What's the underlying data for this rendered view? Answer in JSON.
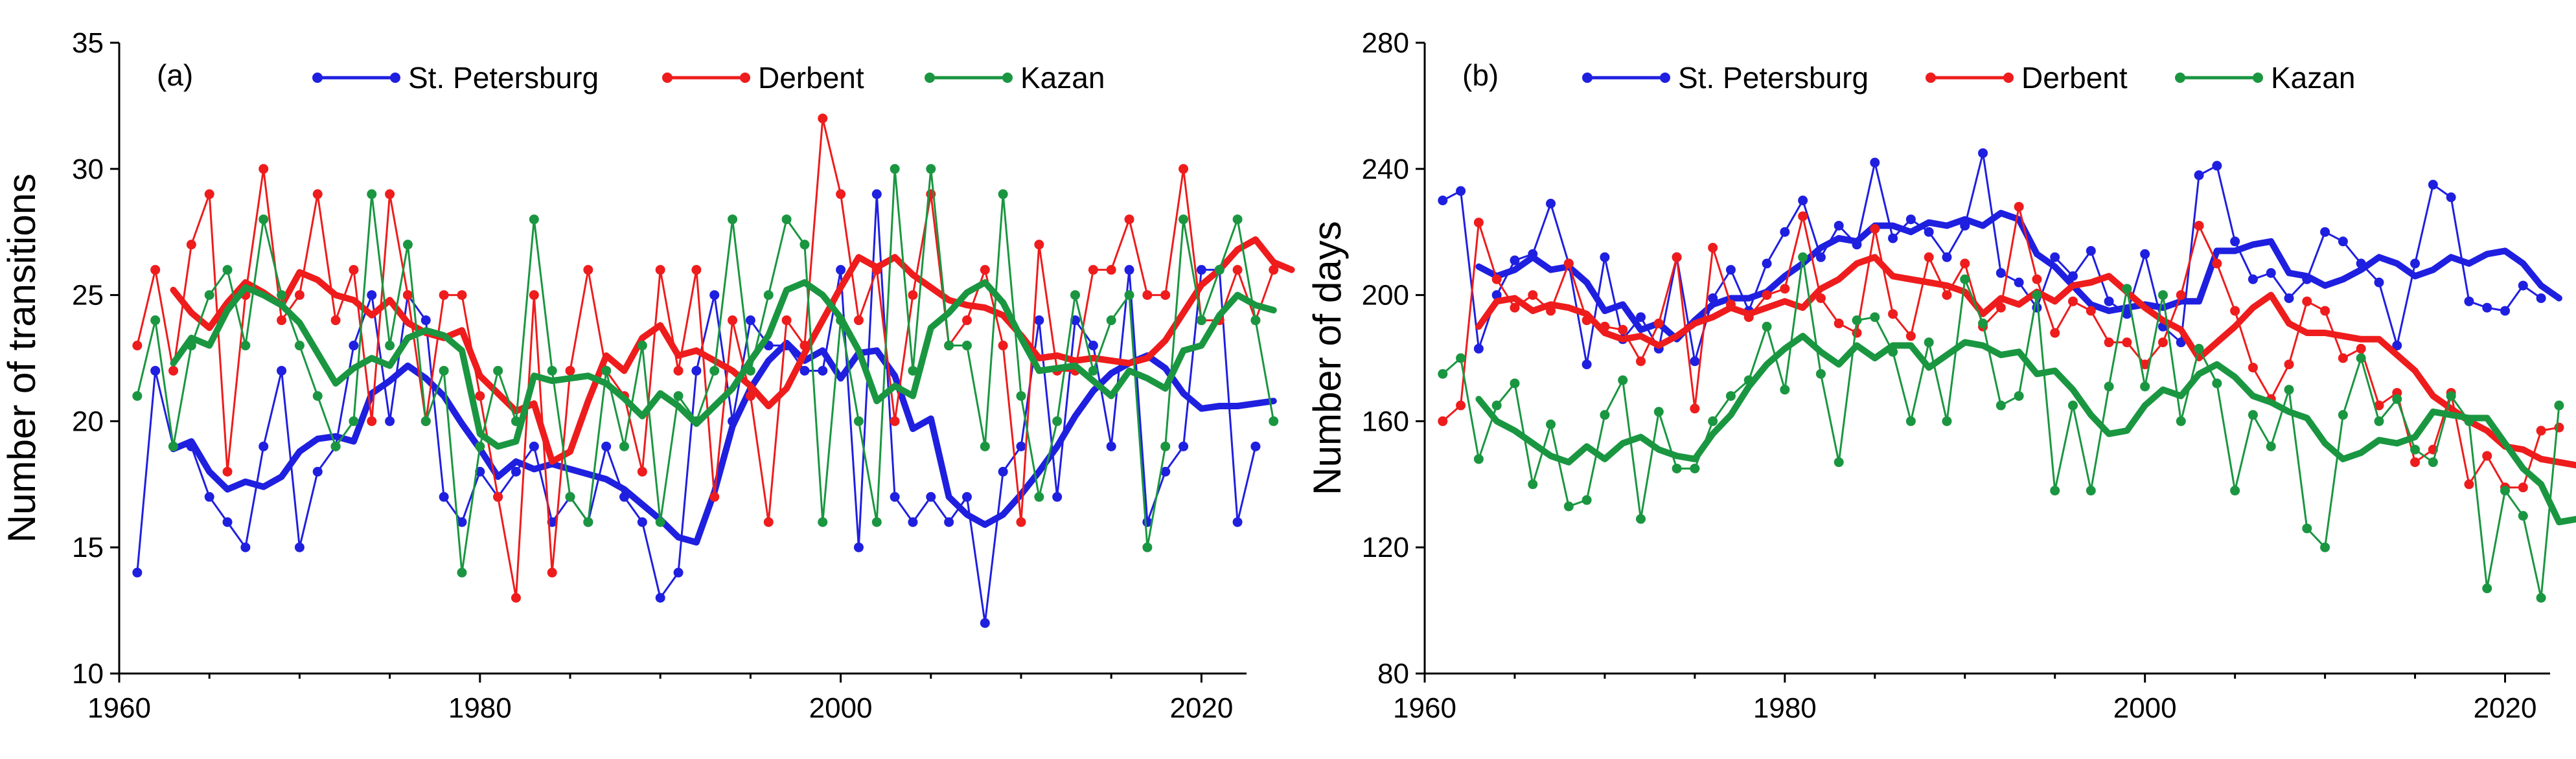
{
  "chart_data": [
    {
      "type": "line",
      "panel_label": "(a)",
      "ylabel": "Number of transitions",
      "xlabel": "",
      "xlim": [
        1960,
        2022.5
      ],
      "ylim": [
        10,
        35
      ],
      "xticks": [
        1960,
        1980,
        2000,
        2020
      ],
      "xtick_labels": [
        "1960",
        "1980",
        "2000",
        "2020"
      ],
      "yticks": [
        10,
        15,
        20,
        25,
        30,
        35
      ],
      "ytick_labels": [
        "10",
        "15",
        "20",
        "25",
        "30",
        "35"
      ],
      "legend": [
        "St. Petersburg",
        "Derbent",
        "Kazan"
      ],
      "series": [
        {
          "name": "St. Petersburg",
          "color": "#1f1fe0",
          "x_start": 1961,
          "values": [
            14,
            22,
            19,
            19,
            17,
            16,
            15,
            19,
            22,
            15,
            18,
            19,
            23,
            25,
            20,
            25,
            24,
            17,
            16,
            18,
            17,
            18,
            19,
            16,
            17,
            16,
            19,
            17,
            16,
            13,
            14,
            22,
            25,
            20,
            24,
            23,
            23,
            22,
            22,
            26,
            15,
            29,
            17,
            16,
            17,
            16,
            17,
            12,
            18,
            19,
            24,
            17,
            24,
            23,
            19,
            26,
            16,
            18,
            19,
            26,
            26,
            16,
            19
          ],
          "smooth_x_start": 1963,
          "smooth": [
            18.9,
            19.2,
            18.0,
            17.3,
            17.6,
            17.4,
            17.8,
            18.8,
            19.3,
            19.4,
            19.2,
            21.1,
            21.6,
            22.2,
            21.7,
            21.0,
            19.9,
            18.9,
            17.8,
            18.4,
            18.1,
            18.3,
            18.1,
            17.9,
            17.7,
            17.3,
            16.7,
            16.1,
            15.4,
            15.2,
            17.2,
            19.8,
            21.3,
            22.4,
            23.1,
            22.4,
            22.8,
            21.7,
            22.7,
            22.8,
            21.8,
            19.7,
            20.1,
            17.0,
            16.3,
            15.9,
            16.3,
            17.1,
            18.0,
            19.0,
            20.2,
            21.2,
            21.9,
            22.3,
            22.6,
            22.1,
            21.1,
            20.5,
            20.6,
            20.6,
            20.7,
            20.8
          ]
        },
        {
          "name": "Derbent",
          "color": "#ee1c1c",
          "x_start": 1961,
          "values": [
            23,
            26,
            22,
            27,
            29,
            18,
            25,
            30,
            24,
            25,
            29,
            24,
            26,
            20,
            29,
            25,
            20,
            25,
            25,
            21,
            17,
            13,
            25,
            14,
            22,
            26,
            22,
            21,
            18,
            26,
            22,
            26,
            17,
            24,
            21,
            16,
            24,
            23,
            32,
            29,
            24,
            26,
            20,
            25,
            29,
            23,
            24,
            26,
            23,
            16,
            27,
            22,
            22,
            26,
            26,
            28,
            25,
            25,
            30,
            24,
            24,
            26,
            24,
            26
          ],
          "smooth_x_start": 1963,
          "smooth": [
            25.2,
            24.3,
            23.7,
            24.7,
            25.5,
            25.1,
            24.6,
            25.9,
            25.6,
            25.0,
            24.8,
            24.2,
            24.8,
            23.9,
            23.5,
            23.3,
            23.6,
            21.8,
            21.1,
            20.4,
            20.7,
            18.4,
            18.8,
            20.8,
            22.6,
            22.0,
            23.3,
            23.8,
            22.6,
            22.8,
            22.4,
            22.0,
            21.4,
            20.6,
            21.3,
            22.7,
            24.0,
            25.3,
            26.5,
            26.1,
            26.5,
            25.8,
            25.3,
            24.8,
            24.6,
            24.5,
            24.2,
            23.4,
            22.5,
            22.6,
            22.4,
            22.5,
            22.4,
            22.3,
            22.5,
            23.2,
            24.3,
            25.4,
            26.0,
            26.8,
            27.2,
            26.3,
            26.0
          ]
        },
        {
          "name": "Kazan",
          "color": "#1a9641",
          "x_start": 1961,
          "values": [
            21,
            24,
            19,
            23,
            25,
            26,
            23,
            28,
            25,
            23,
            21,
            19,
            20,
            29,
            23,
            27,
            20,
            22,
            14,
            19,
            22,
            20,
            28,
            22,
            17,
            16,
            22,
            19,
            23,
            16,
            21,
            20,
            22,
            28,
            22,
            25,
            28,
            27,
            16,
            24,
            20,
            16,
            30,
            22,
            30,
            23,
            23,
            19,
            29,
            21,
            17,
            20,
            25,
            22,
            24,
            25,
            15,
            19,
            28,
            24,
            26,
            28,
            24,
            20
          ],
          "smooth_x_start": 1963,
          "smooth": [
            22.3,
            23.3,
            23.0,
            24.4,
            25.3,
            25.0,
            24.6,
            23.9,
            22.7,
            21.5,
            22.1,
            22.5,
            22.2,
            23.3,
            23.6,
            23.4,
            22.8,
            19.5,
            19.0,
            19.2,
            21.8,
            21.6,
            21.7,
            21.8,
            21.5,
            20.9,
            20.2,
            21.1,
            20.6,
            19.9,
            20.6,
            21.3,
            22.4,
            23.4,
            25.2,
            25.5,
            25.0,
            24.1,
            22.8,
            20.8,
            21.4,
            21.0,
            23.7,
            24.3,
            25.1,
            25.5,
            24.7,
            23.3,
            22.0,
            22.1,
            22.2,
            21.6,
            21.0,
            22.0,
            21.7,
            21.3,
            22.8,
            23.0,
            24.2,
            25.0,
            24.6,
            24.4
          ]
        }
      ]
    },
    {
      "type": "line",
      "panel_label": "(b)",
      "ylabel": "Number of days",
      "xlabel": "",
      "xlim": [
        1960,
        2022.5
      ],
      "ylim": [
        80,
        280
      ],
      "xticks": [
        1960,
        1980,
        2000,
        2020
      ],
      "xtick_labels": [
        "1960",
        "1980",
        "2000",
        "2020"
      ],
      "yticks": [
        80,
        120,
        160,
        200,
        240,
        280
      ],
      "ytick_labels": [
        "80",
        "120",
        "160",
        "200",
        "240",
        "280"
      ],
      "legend": [
        "St. Petersburg",
        "Derbent",
        "Kazan"
      ],
      "series": [
        {
          "name": "St. Petersburg",
          "color": "#1f1fe0",
          "x_start": 1961,
          "values": [
            230,
            233,
            183,
            200,
            211,
            213,
            229,
            210,
            178,
            212,
            186,
            193,
            183,
            212,
            179,
            199,
            208,
            195,
            210,
            220,
            230,
            212,
            222,
            216,
            242,
            218,
            224,
            220,
            212,
            222,
            245,
            207,
            204,
            196,
            212,
            206,
            214,
            198,
            194,
            213,
            190,
            185,
            238,
            241,
            217,
            205,
            207,
            199,
            205,
            220,
            217,
            210,
            204,
            184,
            210,
            235,
            231,
            198,
            196,
            195,
            203,
            199
          ],
          "smooth_x_start": 1963,
          "smooth": [
            209,
            206,
            208,
            212,
            208,
            209,
            204,
            195,
            197,
            189,
            191,
            186,
            192,
            197,
            199,
            199,
            201,
            206,
            210,
            215,
            218,
            217,
            222,
            222,
            220,
            223,
            222,
            224,
            222,
            226,
            224,
            213,
            209,
            203,
            197,
            195,
            196,
            197,
            196,
            198,
            198,
            214,
            214,
            216,
            217,
            207,
            206,
            203,
            205,
            208,
            212,
            210,
            206,
            208,
            212,
            210,
            213,
            214,
            210,
            203,
            199
          ]
        },
        {
          "name": "Derbent",
          "color": "#ee1c1c",
          "x_start": 1961,
          "values": [
            160,
            165,
            223,
            205,
            196,
            200,
            195,
            210,
            192,
            190,
            189,
            179,
            191,
            212,
            164,
            215,
            197,
            193,
            200,
            202,
            225,
            199,
            191,
            188,
            221,
            194,
            187,
            212,
            200,
            210,
            190,
            196,
            228,
            205,
            188,
            198,
            195,
            185,
            185,
            178,
            185,
            200,
            222,
            210,
            195,
            177,
            167,
            178,
            198,
            195,
            180,
            183,
            165,
            169,
            147,
            151,
            169,
            140,
            149,
            139,
            139,
            157,
            158
          ],
          "smooth_x_start": 1963,
          "smooth": [
            190,
            198,
            199,
            195,
            197,
            196,
            194,
            188,
            186,
            187,
            184,
            187,
            191,
            193,
            196,
            194,
            196,
            198,
            196,
            202,
            205,
            210,
            212,
            206,
            205,
            204,
            203,
            201,
            194,
            199,
            197,
            201,
            198,
            203,
            204,
            206,
            201,
            196,
            192,
            189,
            180,
            185,
            190,
            196,
            200,
            191,
            188,
            188,
            187,
            186,
            186,
            181,
            176,
            168,
            164,
            160,
            157,
            152,
            151,
            148,
            147,
            146
          ]
        },
        {
          "name": "Kazan",
          "color": "#1a9641",
          "x_start": 1961,
          "values": [
            175,
            180,
            148,
            165,
            172,
            140,
            159,
            133,
            135,
            162,
            173,
            129,
            163,
            145,
            145,
            160,
            168,
            173,
            190,
            170,
            212,
            175,
            147,
            192,
            193,
            182,
            160,
            185,
            160,
            205,
            191,
            165,
            168,
            200,
            138,
            165,
            138,
            171,
            202,
            171,
            200,
            160,
            183,
            172,
            138,
            162,
            152,
            170,
            126,
            120,
            162,
            180,
            160,
            167,
            151,
            147,
            168,
            160,
            107,
            138,
            130,
            104,
            165
          ],
          "smooth_x_start": 1963,
          "smooth": [
            167,
            160,
            157,
            153,
            149,
            147,
            152,
            148,
            153,
            155,
            151,
            149,
            148,
            156,
            162,
            171,
            178,
            183,
            187,
            182,
            178,
            184,
            180,
            184,
            184,
            177,
            181,
            185,
            184,
            181,
            182,
            175,
            176,
            170,
            162,
            156,
            157,
            165,
            170,
            168,
            175,
            178,
            174,
            168,
            166,
            163,
            161,
            153,
            148,
            150,
            154,
            153,
            155,
            163,
            162,
            161,
            161,
            153,
            145,
            140,
            128,
            129
          ]
        }
      ]
    }
  ]
}
